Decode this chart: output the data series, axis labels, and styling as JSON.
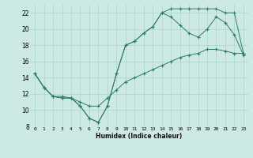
{
  "xlabel": "Humidex (Indice chaleur)",
  "background_color": "#cce9e4",
  "grid_color": "#aad4cc",
  "line_color": "#2d7a6e",
  "xlim": [
    -0.5,
    23.5
  ],
  "ylim": [
    8,
    23
  ],
  "xticks": [
    0,
    1,
    2,
    3,
    4,
    5,
    6,
    7,
    8,
    9,
    10,
    11,
    12,
    13,
    14,
    15,
    16,
    17,
    18,
    19,
    20,
    21,
    22,
    23
  ],
  "yticks": [
    8,
    10,
    12,
    14,
    16,
    18,
    20,
    22
  ],
  "line1_x": [
    0,
    1,
    2,
    3,
    4,
    5,
    6,
    7,
    8,
    9,
    10,
    11,
    12,
    13,
    14,
    15,
    16,
    17,
    18,
    19,
    20,
    21,
    22,
    23
  ],
  "line1_y": [
    14.5,
    12.8,
    11.7,
    11.5,
    11.5,
    10.5,
    9.0,
    8.5,
    10.5,
    14.5,
    18.0,
    18.5,
    19.5,
    20.3,
    22.0,
    21.5,
    20.5,
    19.5,
    19.0,
    20.0,
    21.5,
    20.8,
    19.3,
    16.8
  ],
  "line2_x": [
    0,
    1,
    2,
    3,
    4,
    5,
    6,
    7,
    8,
    9,
    10,
    11,
    12,
    13,
    14,
    15,
    16,
    17,
    18,
    19,
    20,
    21,
    22,
    23
  ],
  "line2_y": [
    14.5,
    12.8,
    11.7,
    11.5,
    11.5,
    10.5,
    9.0,
    8.5,
    10.5,
    14.5,
    18.0,
    18.5,
    19.5,
    20.3,
    22.0,
    22.5,
    22.5,
    22.5,
    22.5,
    22.5,
    22.5,
    22.0,
    22.0,
    17.0
  ],
  "line3_x": [
    0,
    1,
    2,
    3,
    4,
    5,
    6,
    7,
    8,
    9,
    10,
    11,
    12,
    13,
    14,
    15,
    16,
    17,
    18,
    19,
    20,
    21,
    22,
    23
  ],
  "line3_y": [
    14.5,
    12.8,
    11.7,
    11.7,
    11.5,
    11.0,
    10.5,
    10.5,
    11.5,
    12.5,
    13.5,
    14.0,
    14.5,
    15.0,
    15.5,
    16.0,
    16.5,
    16.8,
    17.0,
    17.5,
    17.5,
    17.3,
    17.0,
    17.0
  ],
  "figwidth": 3.2,
  "figheight": 2.0,
  "dpi": 100
}
